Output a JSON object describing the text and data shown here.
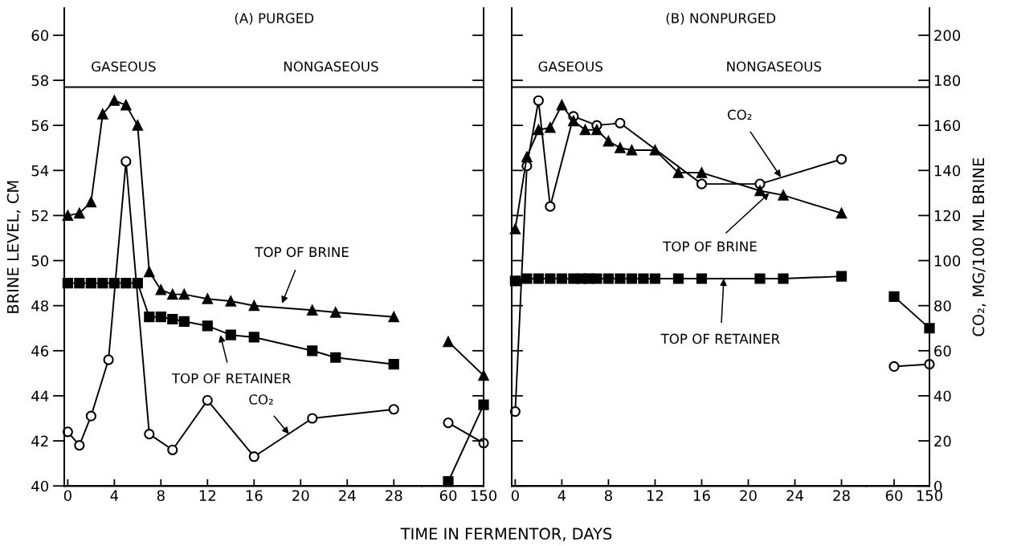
{
  "chart_data": [
    {
      "type": "line",
      "title": "(A) PURGED",
      "xlabel": "TIME IN FERMENTOR, DAYS",
      "ylabel": "BRINE LEVEL, CM",
      "xlim": [
        -0.3,
        30.4
      ],
      "xticks": [
        0,
        4,
        8,
        12,
        16,
        20,
        24,
        28
      ],
      "ylim": [
        40,
        61.2
      ],
      "yticks": [
        40,
        42,
        44,
        46,
        48,
        50,
        52,
        54,
        56,
        58,
        60
      ],
      "y2lim": [
        0,
        212
      ],
      "grid": false,
      "legend": false,
      "ref_lines": [
        {
          "axis": "y",
          "value": 57.7
        }
      ],
      "annotations": [
        "GASEOUS",
        "NONGASEOUS",
        {
          "text": "TOP OF BRINE",
          "x": 18.4,
          "y": 48.1
        },
        {
          "text": "TOP OF RETAINER",
          "x": 13.1,
          "y": 46.7
        },
        {
          "text": "CO₂",
          "x": 19,
          "y": 42.3
        }
      ],
      "series": [
        {
          "color": "#000000",
          "marker": "triangle",
          "x": [
            0,
            1,
            2,
            3,
            4,
            5,
            6,
            7,
            8,
            9,
            10,
            12,
            14,
            16,
            21,
            23,
            28
          ],
          "values": [
            52.0,
            52.1,
            52.6,
            56.5,
            57.1,
            56.9,
            56.0,
            49.5,
            48.7,
            48.5,
            48.5,
            48.3,
            48.2,
            48.0,
            47.8,
            47.7,
            47.5
          ]
        },
        {
          "color": "#000000",
          "marker": "square",
          "x": [
            0,
            1,
            2,
            3,
            4,
            5,
            6,
            7,
            8,
            9,
            10,
            12,
            14,
            16,
            21,
            23,
            28
          ],
          "values": [
            49.0,
            49.0,
            49.0,
            49.0,
            49.0,
            49.0,
            49.0,
            47.5,
            47.5,
            47.4,
            47.3,
            47.1,
            46.7,
            46.6,
            46.0,
            45.7,
            45.4
          ]
        },
        {
          "color": "#000000",
          "marker": "circle",
          "axis": "y2",
          "x": [
            0,
            1,
            2,
            3.5,
            5,
            7,
            9,
            12,
            16,
            21,
            28
          ],
          "values": [
            24,
            18,
            31,
            56,
            144,
            23,
            16,
            38,
            13,
            30,
            34
          ]
        }
      ]
    },
    {
      "type": "line",
      "xlim": [
        -7.5,
        150
      ],
      "xticks": [
        60,
        150
      ],
      "ylim": [
        40,
        61.2
      ],
      "yticks": [
        40,
        42,
        44,
        46,
        48,
        50,
        52,
        54,
        56,
        58,
        60
      ],
      "tick_labels": "x",
      "y2lim": [
        0,
        212
      ],
      "ref_lines": [
        {
          "axis": "y",
          "value": 57.7
        }
      ],
      "series": [
        {
          "color": "#000000",
          "marker": "triangle",
          "x": [
            60,
            150
          ],
          "values": [
            46.4,
            44.9
          ]
        },
        {
          "color": "#000000",
          "marker": "square",
          "x": [
            60,
            150
          ],
          "values": [
            40.2,
            43.6
          ]
        },
        {
          "color": "#000000",
          "marker": "circle",
          "axis": "y2",
          "x": [
            60,
            150
          ],
          "values": [
            28,
            19
          ]
        }
      ]
    },
    {
      "type": "line",
      "title": "(B) NONPURGED",
      "xlim": [
        -0.3,
        30.1
      ],
      "xticks": [
        0,
        4,
        8,
        12,
        16,
        20,
        24,
        28
      ],
      "ylim": [
        40,
        61.2
      ],
      "yticks": [
        40,
        42,
        44,
        46,
        48,
        50,
        52,
        54,
        56,
        58,
        60
      ],
      "tick_labels": "x",
      "y2lim": [
        0,
        212
      ],
      "grid": false,
      "legend": false,
      "ref_lines": [
        {
          "axis": "y",
          "value": 57.7
        }
      ],
      "annotations": [
        "GASEOUS",
        "NONGASEOUS",
        {
          "text": "CO₂",
          "x": 22.8,
          "y": 53.7
        },
        {
          "text": "TOP OF BRINE",
          "x": 21.8,
          "y": 53.0
        },
        {
          "text": "TOP OF RETAINER",
          "x": 17.9,
          "y": 49.2
        }
      ],
      "series": [
        {
          "color": "#000000",
          "marker": "triangle",
          "x": [
            0,
            1,
            2,
            3,
            4,
            5,
            6,
            7,
            8,
            9,
            10,
            12,
            14,
            16,
            21,
            23,
            28
          ],
          "values": [
            51.4,
            54.6,
            55.8,
            55.9,
            56.9,
            56.2,
            55.8,
            55.8,
            55.3,
            55.0,
            54.9,
            54.9,
            53.9,
            53.9,
            53.1,
            52.9,
            52.1
          ]
        },
        {
          "color": "#000000",
          "marker": "square",
          "x": [
            0,
            1,
            2,
            3,
            4,
            5,
            5.7,
            6.3,
            7,
            8,
            9,
            10,
            11,
            12,
            14,
            16,
            21,
            23,
            28
          ],
          "values": [
            49.1,
            49.2,
            49.2,
            49.2,
            49.2,
            49.2,
            49.2,
            49.2,
            49.2,
            49.2,
            49.2,
            49.2,
            49.2,
            49.2,
            49.2,
            49.2,
            49.2,
            49.2,
            49.3
          ]
        },
        {
          "color": "#000000",
          "marker": "circle",
          "axis": "y2",
          "x": [
            0,
            1,
            2,
            3,
            5,
            7,
            9,
            16,
            21,
            28
          ],
          "values": [
            33,
            142,
            171,
            124,
            164,
            160,
            161,
            134,
            134,
            145
          ]
        }
      ]
    },
    {
      "type": "line",
      "y2label": "CO₂, MG/100 ML BRINE",
      "xlim": [
        -11.6,
        150
      ],
      "xticks": [
        60,
        150
      ],
      "ylim": [
        40,
        61.2
      ],
      "y2lim": [
        0,
        212
      ],
      "y2ticks": [
        0,
        20,
        40,
        60,
        80,
        100,
        120,
        140,
        160,
        180,
        200
      ],
      "ref_lines": [
        {
          "axis": "y",
          "value": 57.7
        }
      ],
      "series": [
        {
          "color": "#000000",
          "marker": "square",
          "x": [
            60,
            150
          ],
          "values": [
            48.4,
            47.0
          ]
        },
        {
          "color": "#000000",
          "marker": "circle",
          "axis": "y2",
          "x": [
            60,
            150
          ],
          "values": [
            53,
            54
          ]
        }
      ]
    }
  ]
}
